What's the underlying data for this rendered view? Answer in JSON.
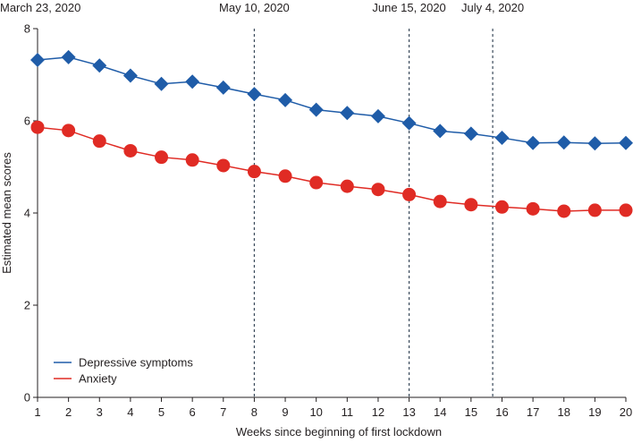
{
  "chart_data": {
    "type": "line",
    "title": "",
    "xlabel": "Weeks since beginning of first lockdown",
    "ylabel": "Estimated mean scores",
    "xlim": [
      1,
      20
    ],
    "ylim": [
      0,
      8
    ],
    "x": [
      1,
      2,
      3,
      4,
      5,
      6,
      7,
      8,
      9,
      10,
      11,
      12,
      13,
      14,
      15,
      16,
      17,
      18,
      19,
      20
    ],
    "xticks": [
      "1",
      "2",
      "3",
      "4",
      "5",
      "6",
      "7",
      "8",
      "9",
      "10",
      "11",
      "12",
      "13",
      "14",
      "15",
      "16",
      "17",
      "18",
      "19",
      "20"
    ],
    "yticks": [
      "0",
      "2",
      "4",
      "6",
      "8"
    ],
    "ytick_values": [
      0,
      2,
      4,
      6,
      8
    ],
    "grid": false,
    "legend_position": "bottom-left",
    "series": [
      {
        "name": "Depressive symptoms",
        "color": "#1f5ca8",
        "marker": "diamond",
        "values": [
          7.32,
          7.38,
          7.2,
          6.98,
          6.8,
          6.85,
          6.72,
          6.58,
          6.45,
          6.24,
          6.17,
          6.1,
          5.95,
          5.78,
          5.72,
          5.63,
          5.52,
          5.53,
          5.51,
          5.52
        ]
      },
      {
        "name": "Anxiety",
        "color": "#e02b24",
        "marker": "circle",
        "values": [
          5.86,
          5.79,
          5.56,
          5.35,
          5.21,
          5.15,
          5.03,
          4.9,
          4.8,
          4.66,
          4.58,
          4.51,
          4.4,
          4.25,
          4.18,
          4.13,
          4.09,
          4.04,
          4.06,
          4.06
        ]
      }
    ],
    "annotations": [
      {
        "label": "March 23, 2020",
        "x": 1,
        "line": false
      },
      {
        "label": "May 10, 2020",
        "x": 8,
        "line": true
      },
      {
        "label": "June 15, 2020",
        "x": 13,
        "line": true
      },
      {
        "label": "July 4, 2020",
        "x": 15.7,
        "line": true
      }
    ]
  }
}
